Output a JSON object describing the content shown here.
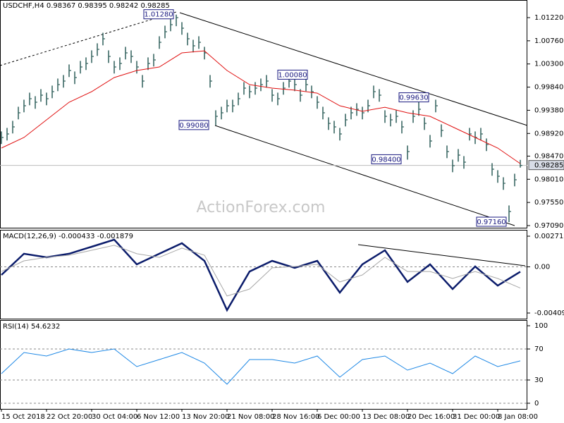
{
  "chart_data": [
    {
      "type": "ohlc",
      "title": "USDCHF,H4  0.98367 0.98395 0.98242 0.98285",
      "color": "#2f5f5a",
      "ylim": [
        0.97048,
        1.0157
      ],
      "yticks": [
        {
          "value": 1.0122,
          "label": "1.01220"
        },
        {
          "value": 1.0076,
          "label": "1.00760"
        },
        {
          "value": 1.003,
          "label": "1.00300"
        },
        {
          "value": 0.9984,
          "label": "0.99840"
        },
        {
          "value": 0.9938,
          "label": "0.99380"
        },
        {
          "value": 0.9892,
          "label": "0.98920"
        },
        {
          "value": 0.9847,
          "label": "0.98470"
        },
        {
          "value": 0.9801,
          "label": "0.98010"
        },
        {
          "value": 0.9755,
          "label": "0.97550"
        },
        {
          "value": 0.9709,
          "label": "0.97090"
        }
      ],
      "last_price": {
        "value": 0.98285,
        "label": "0.98285"
      },
      "annotations": [
        {
          "value": 1.0128,
          "label": "1.01280"
        },
        {
          "value": 0.9908,
          "label": "0.99080"
        },
        {
          "value": 1.0008,
          "label": "1.00080"
        },
        {
          "value": 0.9963,
          "label": "0.99630"
        },
        {
          "value": 0.984,
          "label": "0.98400"
        },
        {
          "value": 0.9716,
          "label": "0.97160"
        }
      ],
      "watermark": "ActionForex.com",
      "close": [
        0.9884,
        0.9891,
        0.9905,
        0.9933,
        0.9947,
        0.9961,
        0.9954,
        0.9968,
        0.9961,
        0.9975,
        0.9989,
        0.9996,
        1.0017,
        1.0003,
        1.0024,
        1.0031,
        1.0045,
        1.0059,
        1.008,
        1.0045,
        1.0024,
        1.0031,
        1.0052,
        1.0045,
        1.0024,
        0.9996,
        1.0031,
        1.0038,
        1.0073,
        1.0094,
        1.0108,
        1.0122,
        1.0101,
        1.008,
        1.0066,
        1.0073,
        1.0052,
        0.9996,
        0.9926,
        0.9933,
        0.9947,
        0.9947,
        0.9961,
        0.9982,
        0.9975,
        0.9982,
        0.9989,
        0.9996,
        0.9968,
        0.9961,
        0.9982,
        0.9996,
        0.9989,
        0.9968,
        0.9989,
        0.9975,
        0.9954,
        0.9933,
        0.9912,
        0.9905,
        0.9891,
        0.9919,
        0.9933,
        0.994,
        0.9933,
        0.9947,
        0.9975,
        0.9968,
        0.9926,
        0.9919,
        0.9926,
        0.9905,
        0.9856,
        0.9926,
        0.994,
        0.9912,
        0.9877,
        0.9947,
        0.9898,
        0.9856,
        0.9828,
        0.9849,
        0.9835,
        0.9891,
        0.9884,
        0.9891,
        0.987,
        0.9821,
        0.9807,
        0.9793,
        0.9737,
        0.98,
        0.98285
      ],
      "high": [
        0.9896,
        0.9903,
        0.9917,
        0.9945,
        0.9959,
        0.9973,
        0.9966,
        0.998,
        0.9973,
        0.9987,
        1.0001,
        1.0008,
        1.0029,
        1.0015,
        1.0036,
        1.0043,
        1.0057,
        1.0071,
        1.0092,
        1.0057,
        1.0036,
        1.0043,
        1.0064,
        1.0057,
        1.0036,
        1.0008,
        1.0043,
        1.005,
        1.0085,
        1.0106,
        1.012,
        1.0128,
        1.0113,
        1.0092,
        1.0078,
        1.0085,
        1.0064,
        1.0008,
        0.9938,
        0.9945,
        0.9959,
        0.9959,
        0.9973,
        0.9994,
        0.9987,
        0.9994,
        1.0001,
        1.0008,
        0.998,
        0.9973,
        0.9994,
        1.0008,
        1.0001,
        0.998,
        1.0001,
        0.9987,
        0.9966,
        0.9945,
        0.9924,
        0.9917,
        0.9903,
        0.9931,
        0.9945,
        0.9952,
        0.9945,
        0.9959,
        0.9987,
        0.998,
        0.9938,
        0.9931,
        0.9938,
        0.9917,
        0.9868,
        0.9938,
        0.9963,
        0.9924,
        0.9889,
        0.9959,
        0.991,
        0.9868,
        0.984,
        0.9861,
        0.9847,
        0.9903,
        0.9896,
        0.9903,
        0.9882,
        0.9833,
        0.9819,
        0.9805,
        0.9749,
        0.9812,
        0.98395
      ],
      "low": [
        0.9871,
        0.9878,
        0.9892,
        0.992,
        0.9934,
        0.9948,
        0.9941,
        0.9955,
        0.9948,
        0.9962,
        0.9976,
        0.9983,
        1.0004,
        0.999,
        1.0011,
        1.0018,
        1.0032,
        1.0046,
        1.0067,
        1.0032,
        1.0011,
        1.0018,
        1.0039,
        1.0032,
        1.0011,
        0.9983,
        1.0018,
        1.0025,
        1.006,
        1.0081,
        1.0095,
        1.0105,
        1.0088,
        1.0067,
        1.0053,
        1.006,
        1.0039,
        0.9983,
        0.9908,
        0.992,
        0.9934,
        0.9934,
        0.9948,
        0.9969,
        0.9962,
        0.9969,
        0.9976,
        0.9983,
        0.9955,
        0.9948,
        0.9969,
        0.9983,
        0.9976,
        0.9955,
        0.9976,
        0.9962,
        0.9941,
        0.992,
        0.9899,
        0.9892,
        0.9878,
        0.9906,
        0.992,
        0.9927,
        0.992,
        0.9934,
        0.9962,
        0.9955,
        0.9913,
        0.9906,
        0.9913,
        0.9892,
        0.984,
        0.9913,
        0.9927,
        0.9899,
        0.9864,
        0.9934,
        0.9885,
        0.9843,
        0.9815,
        0.9836,
        0.9822,
        0.9878,
        0.9871,
        0.9878,
        0.9857,
        0.9808,
        0.9794,
        0.978,
        0.9716,
        0.9787,
        0.98242
      ],
      "overlay": {
        "color": "#e01010",
        "x": [
          0,
          4,
          8,
          12,
          16,
          20,
          24,
          28,
          32,
          36,
          40,
          44,
          48,
          52,
          56,
          60,
          64,
          68,
          72,
          76,
          80,
          84,
          88,
          92
        ],
        "values": [
          0.9863,
          0.9884,
          0.9919,
          0.9954,
          0.9975,
          1.0003,
          1.0017,
          1.0024,
          1.0052,
          1.0056,
          1.0017,
          0.9989,
          0.9982,
          0.9978,
          0.9972,
          0.9947,
          0.9936,
          0.9944,
          0.9933,
          0.9926,
          0.9905,
          0.9884,
          0.9863,
          0.9832
        ]
      }
    },
    {
      "type": "line",
      "title": "MACD(12,26,9) -0.000433 -0.001879",
      "ylim": [
        -0.004593,
        0.003217
      ],
      "yticks": [
        {
          "value": 0.002717,
          "label": "0.002717"
        },
        {
          "value": 0,
          "label": "0.00"
        },
        {
          "value": -0.004093,
          "label": "-0.004093"
        }
      ],
      "x": [
        0,
        4,
        8,
        12,
        16,
        20,
        24,
        28,
        32,
        36,
        40,
        44,
        48,
        52,
        56,
        60,
        64,
        68,
        72,
        76,
        80,
        84,
        88,
        92
      ],
      "series": [
        {
          "color": "#0b1c6b",
          "values": [
            -0.00072,
            0.00116,
            0.00084,
            0.00116,
            0.00178,
            0.00241,
            0.00022,
            0.00116,
            0.00209,
            0.00053,
            -0.00384,
            -0.00041,
            0.00053,
            -9e-05,
            0.00053,
            -0.00228,
            0.00022,
            0.00147,
            -0.00134,
            0.00022,
            -0.00197,
            3e-05,
            -0.00166,
            -0.000433
          ]
        },
        {
          "color": "#a8a8a8",
          "values": [
            -0.00041,
            0.00053,
            0.00084,
            0.00103,
            0.00147,
            0.00191,
            0.00116,
            0.00084,
            0.00166,
            0.00103,
            -0.00259,
            -0.00197,
            -9e-05,
            3e-05,
            0.00022,
            -0.00134,
            -0.00072,
            0.00084,
            -0.00041,
            -0.00041,
            -0.00103,
            -0.00041,
            -0.00103,
            -0.001879
          ]
        }
      ]
    },
    {
      "type": "line",
      "title": "RSI(14) 54.6232",
      "ylim": [
        -7.3,
        106.4
      ],
      "yticks": [
        100,
        70,
        30,
        0
      ],
      "levels": [
        70,
        30
      ],
      "xlim": [
        -0.25,
        93.25
      ],
      "xticks": [
        {
          "value": 0,
          "label": "15 Oct 2018"
        },
        {
          "value": 8,
          "label": "22 Oct 20:00"
        },
        {
          "value": 16,
          "label": "30 Oct 04:00"
        },
        {
          "value": 24,
          "label": "6 Nov 12:00"
        },
        {
          "value": 32,
          "label": "13 Nov 20:00"
        },
        {
          "value": 40,
          "label": "21 Nov 08:00"
        },
        {
          "value": 48,
          "label": "28 Nov 16:00"
        },
        {
          "value": 56,
          "label": "6 Dec 00:00"
        },
        {
          "value": 64,
          "label": "13 Dec 08:00"
        },
        {
          "value": 72,
          "label": "20 Dec 16:00"
        },
        {
          "value": 80,
          "label": "31 Dec 00:00"
        },
        {
          "value": 88,
          "label": "8 Jan 08:00"
        }
      ],
      "x": [
        0,
        4,
        8,
        12,
        16,
        20,
        24,
        28,
        32,
        36,
        40,
        44,
        48,
        52,
        56,
        60,
        64,
        68,
        72,
        76,
        80,
        84,
        88,
        92
      ],
      "series": [
        {
          "color": "#1e88e5",
          "values": [
            38.2,
            65.5,
            60.9,
            70.0,
            65.5,
            70.0,
            47.3,
            56.4,
            65.5,
            51.8,
            24.5,
            56.4,
            56.4,
            51.8,
            60.9,
            33.6,
            56.4,
            60.9,
            42.7,
            51.8,
            38.2,
            60.9,
            47.3,
            54.6
          ]
        }
      ]
    }
  ]
}
